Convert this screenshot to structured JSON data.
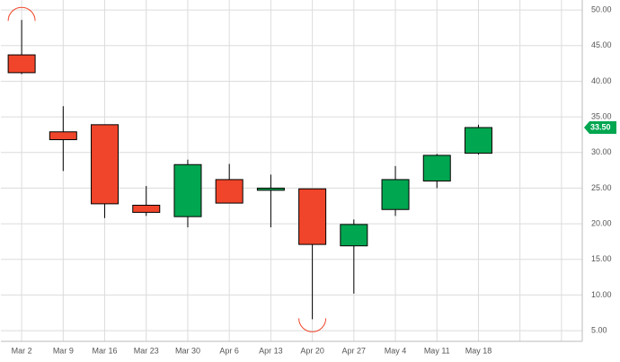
{
  "chart_data": {
    "type": "candlestick",
    "categories": [
      "Mar 2",
      "Mar 9",
      "Mar 16",
      "Mar 23",
      "Mar 30",
      "Apr 6",
      "Apr 13",
      "Apr 20",
      "Apr 27",
      "May 4",
      "May 11",
      "May 18",
      null,
      null
    ],
    "open": [
      43.7,
      32.9,
      33.9,
      22.6,
      21.0,
      26.2,
      24.7,
      24.9,
      16.9,
      22.0,
      26.0,
      29.9,
      null,
      null
    ],
    "high": [
      48.6,
      36.5,
      33.9,
      25.3,
      29.0,
      28.4,
      26.9,
      24.9,
      20.6,
      28.1,
      29.8,
      33.9,
      null,
      null
    ],
    "low": [
      41.0,
      27.4,
      20.8,
      21.1,
      19.5,
      22.9,
      19.5,
      6.6,
      10.2,
      21.1,
      25.0,
      29.7,
      null,
      null
    ],
    "close": [
      41.2,
      31.8,
      22.8,
      21.6,
      28.3,
      22.9,
      25.0,
      17.1,
      19.9,
      26.2,
      29.6,
      33.5,
      null,
      null
    ],
    "up_color": "#00a650",
    "down_color": "#f0452a",
    "ylim": [
      3.5,
      51.4
    ],
    "yticks": [
      {
        "value": 5,
        "label": "5.00"
      },
      {
        "value": 10,
        "label": "10.00"
      },
      {
        "value": 15,
        "label": "15.00"
      },
      {
        "value": 20,
        "label": "20.00"
      },
      {
        "value": 25,
        "label": "25.00"
      },
      {
        "value": 30,
        "label": "30.00"
      },
      {
        "value": 35,
        "label": "35.00"
      },
      {
        "value": 40,
        "label": "40.00"
      },
      {
        "value": 45,
        "label": "45.00"
      },
      {
        "value": 50,
        "label": "50.00"
      }
    ],
    "last_price": {
      "value": 33.5,
      "label": "33.50"
    },
    "grid": true
  }
}
